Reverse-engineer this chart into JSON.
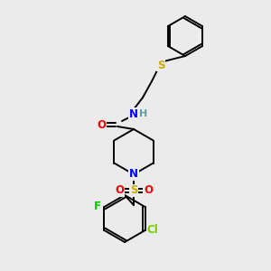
{
  "bg_color": "#ebebeb",
  "atom_colors": {
    "C": "#000000",
    "H": "#5f9ea0",
    "N": "#0000ff",
    "O": "#ff0000",
    "S_thioether": "#ccaa00",
    "S_sulfonyl": "#ccaa00",
    "F": "#00cc00",
    "Cl": "#77cc00",
    "bond": "#000000"
  },
  "figsize": [
    3.0,
    3.0
  ],
  "dpi": 100
}
